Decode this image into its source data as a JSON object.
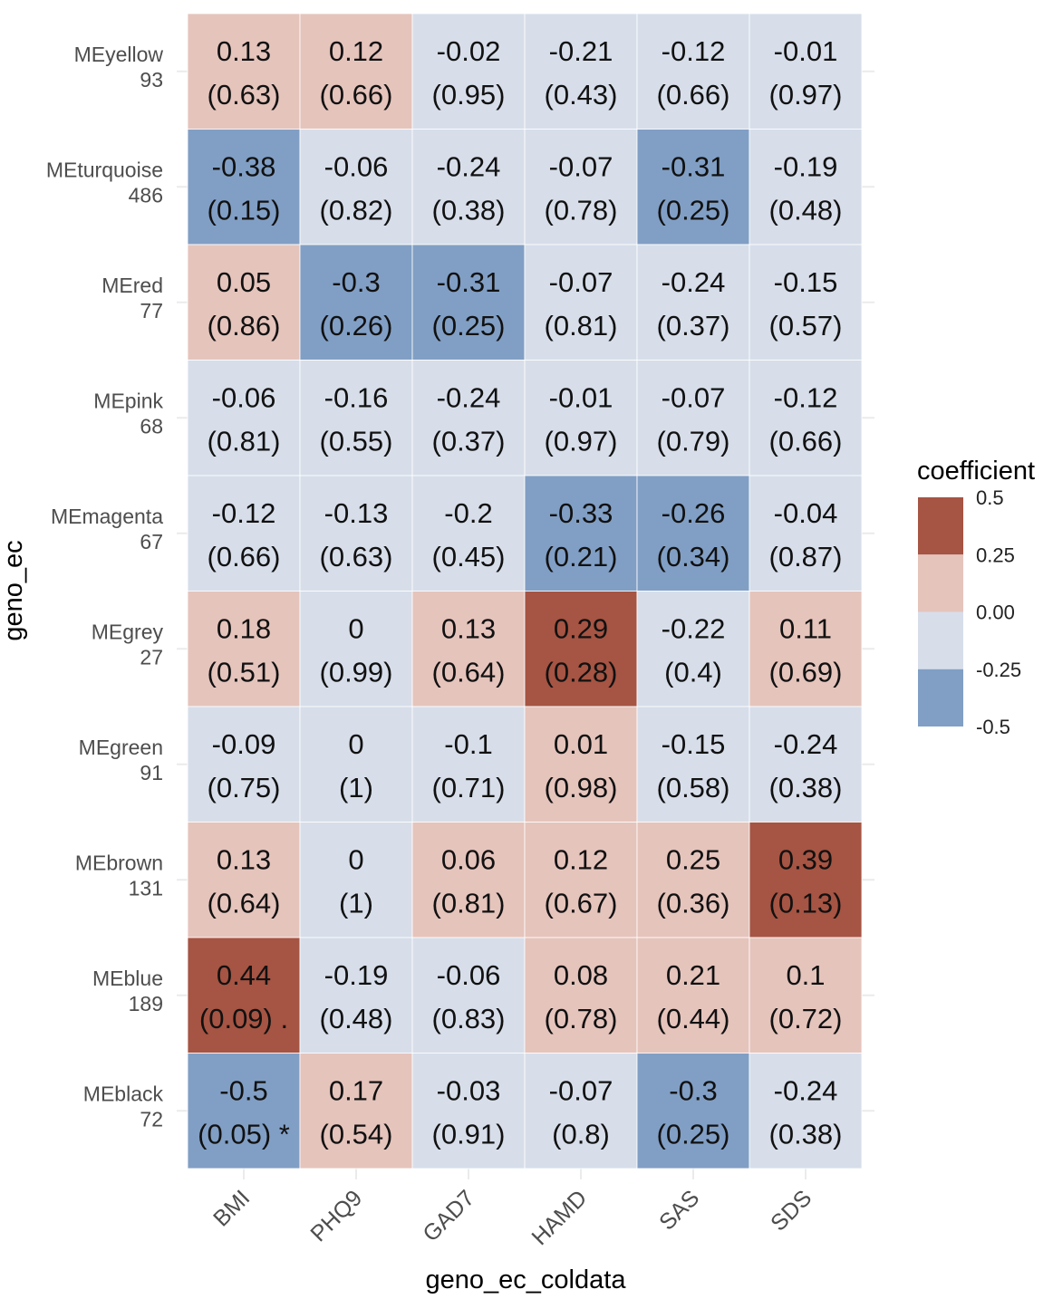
{
  "chart_data": {
    "type": "heatmap",
    "xlabel": "geno_ec_coldata",
    "ylabel": "geno_ec",
    "columns": [
      "BMI",
      "PHQ9",
      "GAD7",
      "HAMD",
      "SAS",
      "SDS"
    ],
    "rows": [
      {
        "name": "MEyellow",
        "count": "93",
        "coefficients": [
          0.13,
          0.12,
          -0.02,
          -0.21,
          -0.12,
          -0.01
        ],
        "labels": [
          "0.13",
          "0.12",
          "-0.02",
          "-0.21",
          "-0.12",
          "-0.01"
        ],
        "pvalues": [
          "(0.63)",
          "(0.66)",
          "(0.95)",
          "(0.43)",
          "(0.66)",
          "(0.97)"
        ]
      },
      {
        "name": "MEturquoise",
        "count": "486",
        "coefficients": [
          -0.38,
          -0.06,
          -0.24,
          -0.07,
          -0.31,
          -0.19
        ],
        "labels": [
          "-0.38",
          "-0.06",
          "-0.24",
          "-0.07",
          "-0.31",
          "-0.19"
        ],
        "pvalues": [
          "(0.15)",
          "(0.82)",
          "(0.38)",
          "(0.78)",
          "(0.25)",
          "(0.48)"
        ]
      },
      {
        "name": "MEred",
        "count": "77",
        "coefficients": [
          0.05,
          -0.3,
          -0.31,
          -0.07,
          -0.24,
          -0.15
        ],
        "labels": [
          "0.05",
          "-0.3",
          "-0.31",
          "-0.07",
          "-0.24",
          "-0.15"
        ],
        "pvalues": [
          "(0.86)",
          "(0.26)",
          "(0.25)",
          "(0.81)",
          "(0.37)",
          "(0.57)"
        ]
      },
      {
        "name": "MEpink",
        "count": "68",
        "coefficients": [
          -0.06,
          -0.16,
          -0.24,
          -0.01,
          -0.07,
          -0.12
        ],
        "labels": [
          "-0.06",
          "-0.16",
          "-0.24",
          "-0.01",
          "-0.07",
          "-0.12"
        ],
        "pvalues": [
          "(0.81)",
          "(0.55)",
          "(0.37)",
          "(0.97)",
          "(0.79)",
          "(0.66)"
        ]
      },
      {
        "name": "MEmagenta",
        "count": "67",
        "coefficients": [
          -0.12,
          -0.13,
          -0.2,
          -0.33,
          -0.26,
          -0.04
        ],
        "labels": [
          "-0.12",
          "-0.13",
          "-0.2",
          "-0.33",
          "-0.26",
          "-0.04"
        ],
        "pvalues": [
          "(0.66)",
          "(0.63)",
          "(0.45)",
          "(0.21)",
          "(0.34)",
          "(0.87)"
        ]
      },
      {
        "name": "MEgrey",
        "count": "27",
        "coefficients": [
          0.18,
          0,
          0.13,
          0.29,
          -0.22,
          0.11
        ],
        "labels": [
          "0.18",
          "0",
          "0.13",
          "0.29",
          "-0.22",
          "0.11"
        ],
        "pvalues": [
          "(0.51)",
          "(0.99)",
          "(0.64)",
          "(0.28)",
          "(0.4)",
          "(0.69)"
        ]
      },
      {
        "name": "MEgreen",
        "count": "91",
        "coefficients": [
          -0.09,
          0,
          -0.1,
          0.01,
          -0.15,
          -0.24
        ],
        "labels": [
          "-0.09",
          "0",
          "-0.1",
          "0.01",
          "-0.15",
          "-0.24"
        ],
        "pvalues": [
          "(0.75)",
          "(1)",
          "(0.71)",
          "(0.98)",
          "(0.58)",
          "(0.38)"
        ]
      },
      {
        "name": "MEbrown",
        "count": "131",
        "coefficients": [
          0.13,
          0,
          0.06,
          0.12,
          0.25,
          0.39
        ],
        "labels": [
          "0.13",
          "0",
          "0.06",
          "0.12",
          "0.25",
          "0.39"
        ],
        "pvalues": [
          "(0.64)",
          "(1)",
          "(0.81)",
          "(0.67)",
          "(0.36)",
          "(0.13)"
        ]
      },
      {
        "name": "MEblue",
        "count": "189",
        "coefficients": [
          0.44,
          -0.19,
          -0.06,
          0.08,
          0.21,
          0.1
        ],
        "labels": [
          "0.44",
          "-0.19",
          "-0.06",
          "0.08",
          "0.21",
          "0.1"
        ],
        "pvalues": [
          "(0.09) .",
          "(0.48)",
          "(0.83)",
          "(0.78)",
          "(0.44)",
          "(0.72)"
        ]
      },
      {
        "name": "MEblack",
        "count": "72",
        "coefficients": [
          -0.5,
          0.17,
          -0.03,
          -0.07,
          -0.3,
          -0.24
        ],
        "labels": [
          "-0.5",
          "0.17",
          "-0.03",
          "-0.07",
          "-0.3",
          "-0.24"
        ],
        "pvalues": [
          "(0.05) *",
          "(0.54)",
          "(0.91)",
          "(0.8)",
          "(0.25)",
          "(0.38)"
        ]
      }
    ],
    "legend": {
      "title": "coefficient",
      "labels": [
        "0.5",
        "0.25",
        "0.00",
        "-0.25",
        "-0.5"
      ],
      "bins": [
        {
          "range": [
            0.25,
            0.5
          ],
          "color": "#A65443"
        },
        {
          "range": [
            0,
            0.25
          ],
          "color": "#E5C4BC"
        },
        {
          "range": [
            -0.25,
            0
          ],
          "color": "#D7DEEA"
        },
        {
          "range": [
            -0.5,
            -0.25
          ],
          "color": "#819FC5"
        }
      ]
    },
    "grid": true
  }
}
